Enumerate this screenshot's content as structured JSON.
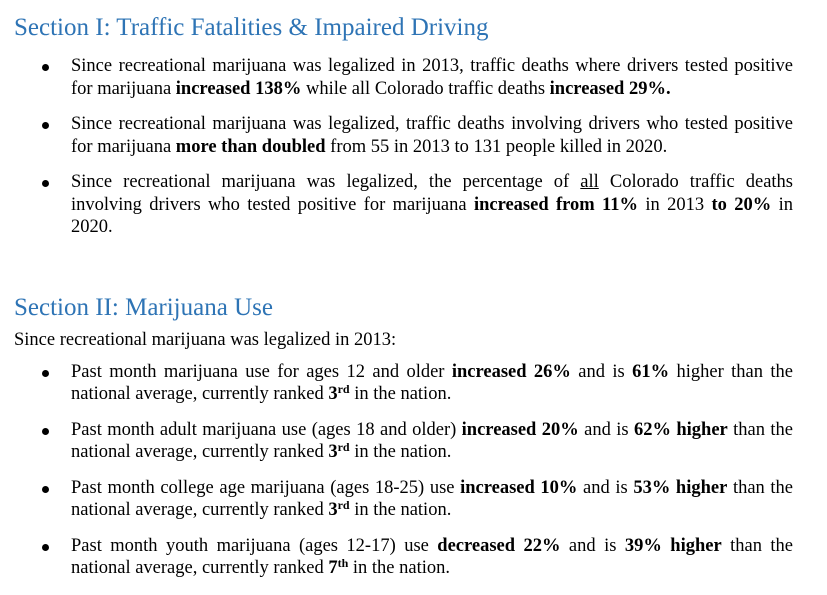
{
  "section1": {
    "heading": "Section I: Traffic Fatalities & Impaired Driving",
    "bullets": [
      {
        "t1": "Since recreational marijuana was legalized in 2013, traffic deaths where drivers tested positive for marijuana ",
        "b1": "increased 138%",
        "t2": " while all Colorado traffic deaths ",
        "b2": "increased 29%."
      },
      {
        "t1": "Since recreational marijuana was legalized, traffic deaths involving drivers who tested positive for marijuana ",
        "b1": "more than doubled",
        "t2": " from 55 in 2013 to 131 people killed in 2020."
      },
      {
        "t1": "Since recreational marijuana was legalized, the percentage of ",
        "u1": "all",
        "t2": " Colorado traffic deaths involving drivers who tested positive for marijuana ",
        "b1": "increased from 11%",
        "t3": " in 2013 ",
        "b2": "to 20%",
        "t4": " in 2020."
      }
    ]
  },
  "section2": {
    "heading": "Section II:  Marijuana Use",
    "intro": "Since recreational marijuana was legalized in 2013:",
    "bullets": [
      {
        "t1": "Past month marijuana use for ages 12 and older ",
        "b1": "increased 26%",
        "t2": " and is ",
        "b2": "61%",
        "t3": " higher than the national average, currently ranked ",
        "rank": "3",
        "sup": "rd",
        "t4": " in the nation."
      },
      {
        "t1": "Past month adult marijuana use (ages 18 and older) ",
        "b1": "increased 20%",
        "t2": " and is ",
        "b2": "62% higher",
        "t3": " than the national average, currently ranked ",
        "rank": "3",
        "sup": "rd",
        "t4": " in the nation."
      },
      {
        "t1": "Past month college age marijuana (ages 18-25) use ",
        "b1": "increased 10%",
        "t2": " and is ",
        "b2": "53% higher",
        "t3": " than the national average, currently ranked ",
        "rank": "3",
        "sup": "rd",
        "t4": " in the nation."
      },
      {
        "t1": "Past month youth marijuana (ages 12-17) use ",
        "b1": "decreased 22%",
        "t2": " and is ",
        "b2": "39% higher",
        "t3": " than the national average, currently ranked ",
        "rank": "7",
        "sup": "th",
        "t4": " in the nation."
      }
    ]
  },
  "colors": {
    "heading": "#2e74b5",
    "text": "#000000"
  }
}
